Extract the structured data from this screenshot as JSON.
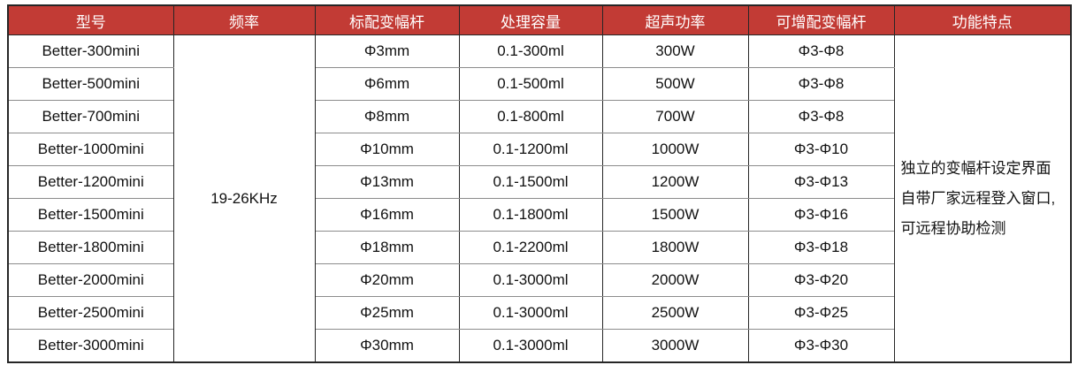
{
  "table": {
    "headers": [
      "型号",
      "频率",
      "标配变幅杆",
      "处理容量",
      "超声功率",
      "可增配变幅杆",
      "功能特点"
    ],
    "frequency": "19-26KHz",
    "features": [
      "独立的变幅杆设定界面",
      "自带厂家远程登入窗口,",
      "可远程协助检测"
    ],
    "rows": [
      {
        "model": "Better-300mini",
        "horn": "Φ3mm",
        "capacity": "0.1-300ml",
        "power": "300W",
        "optional": "Φ3-Φ8"
      },
      {
        "model": "Better-500mini",
        "horn": "Φ6mm",
        "capacity": "0.1-500ml",
        "power": "500W",
        "optional": "Φ3-Φ8"
      },
      {
        "model": "Better-700mini",
        "horn": "Φ8mm",
        "capacity": "0.1-800ml",
        "power": "700W",
        "optional": "Φ3-Φ8"
      },
      {
        "model": "Better-1000mini",
        "horn": "Φ10mm",
        "capacity": "0.1-1200ml",
        "power": "1000W",
        "optional": "Φ3-Φ10"
      },
      {
        "model": "Better-1200mini",
        "horn": "Φ13mm",
        "capacity": "0.1-1500ml",
        "power": "1200W",
        "optional": "Φ3-Φ13"
      },
      {
        "model": "Better-1500mini",
        "horn": "Φ16mm",
        "capacity": "0.1-1800ml",
        "power": "1500W",
        "optional": "Φ3-Φ16"
      },
      {
        "model": "Better-1800mini",
        "horn": "Φ18mm",
        "capacity": "0.1-2200ml",
        "power": "1800W",
        "optional": "Φ3-Φ18"
      },
      {
        "model": "Better-2000mini",
        "horn": "Φ20mm",
        "capacity": "0.1-3000ml",
        "power": "2000W",
        "optional": "Φ3-Φ20"
      },
      {
        "model": "Better-2500mini",
        "horn": "Φ25mm",
        "capacity": "0.1-3000ml",
        "power": "2500W",
        "optional": "Φ3-Φ25"
      },
      {
        "model": "Better-3000mini",
        "horn": "Φ30mm",
        "capacity": "0.1-3000ml",
        "power": "3000W",
        "optional": "Φ3-Φ30"
      }
    ],
    "colors": {
      "header_bg": "#C23B35",
      "header_text": "#FFFFFF",
      "grid_dark": "#262626",
      "row_divider": "#8C8C8C",
      "body_text": "#111111"
    }
  }
}
